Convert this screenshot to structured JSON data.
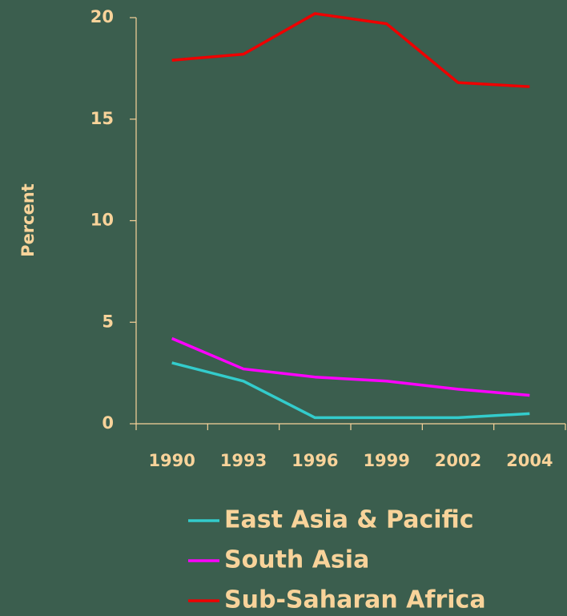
{
  "chart_data": {
    "type": "line",
    "y_label": "Percent",
    "categories": [
      "1990",
      "1993",
      "1996",
      "1999",
      "2002",
      "2004"
    ],
    "series": [
      {
        "name": "East Asia & Pacific",
        "color": "#33cccc",
        "values": [
          3.0,
          2.1,
          0.3,
          0.3,
          0.3,
          0.5
        ]
      },
      {
        "name": "South Asia",
        "color": "#ff00ff",
        "values": [
          4.2,
          2.7,
          2.3,
          2.1,
          1.7,
          1.4
        ]
      },
      {
        "name": "Sub-Saharan Africa",
        "color": "#ee0000",
        "values": [
          17.9,
          18.2,
          20.2,
          19.7,
          16.8,
          16.6
        ]
      }
    ],
    "ylim": [
      0,
      20
    ],
    "yticks": [
      0,
      5,
      10,
      15,
      20
    ],
    "grid": false
  }
}
